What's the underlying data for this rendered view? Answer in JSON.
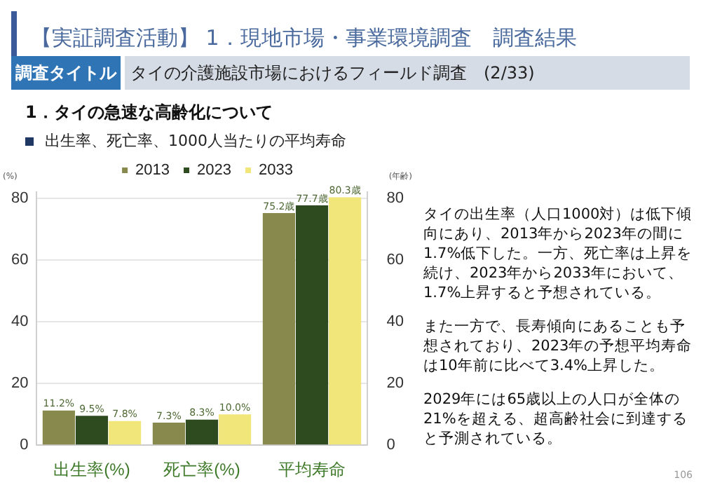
{
  "chart_data": {
    "type": "bar",
    "title": "【実証調査活動】 1．現地市場・事業環境調査　調査結果",
    "subtitle": "出生率、死亡率、1000人当たりの平均寿命",
    "ylabel": "(%)",
    "y2label": "(年齢)",
    "categories": [
      "出生率(%)",
      "死亡率(%)",
      "平均寿命"
    ],
    "series": [
      {
        "name": "2013",
        "color": "#878a4c",
        "values": [
          11.2,
          7.3,
          75.2
        ],
        "value_labels": [
          "11.2%",
          "7.3%",
          "75.2歳"
        ]
      },
      {
        "name": "2023",
        "color": "#2e4a1f",
        "values": [
          9.5,
          8.3,
          77.7
        ],
        "value_labels": [
          "9.5%",
          "8.3%",
          "77.7歳"
        ]
      },
      {
        "name": "2033",
        "color": "#f0e67a",
        "values": [
          7.8,
          10.0,
          80.3
        ],
        "value_labels": [
          "7.8%",
          "10.0%",
          "80.3歳"
        ]
      }
    ],
    "ylim": [
      0,
      82
    ],
    "yticks": [
      0,
      20,
      40,
      60,
      80
    ],
    "y2lim": [
      0,
      82
    ],
    "y2ticks": [
      0,
      20,
      40,
      60,
      80
    ],
    "grid": "y",
    "legend": "top",
    "annotations": [
      "調査タイトル",
      "タイの介護施設市場におけるフィールド調査　(2/33)",
      "1．タイの急速な高齢化について",
      "タイの出生率（人口1000対）は低下傾向にあり、2013年から2023年の間に1.7%低下した。一方、死亡率は上昇を続け、2023年から2033年において、1.7%上昇すると予想されている。",
      "また一方で、長寿傾向にあることも予想されており、2023年の予想平均寿命は10年前に比べて3.4%上昇した。",
      "2029年には65歳以上の人口が全体の21%を超える、超高齢社会に到達すると予測されている。",
      "106"
    ]
  }
}
